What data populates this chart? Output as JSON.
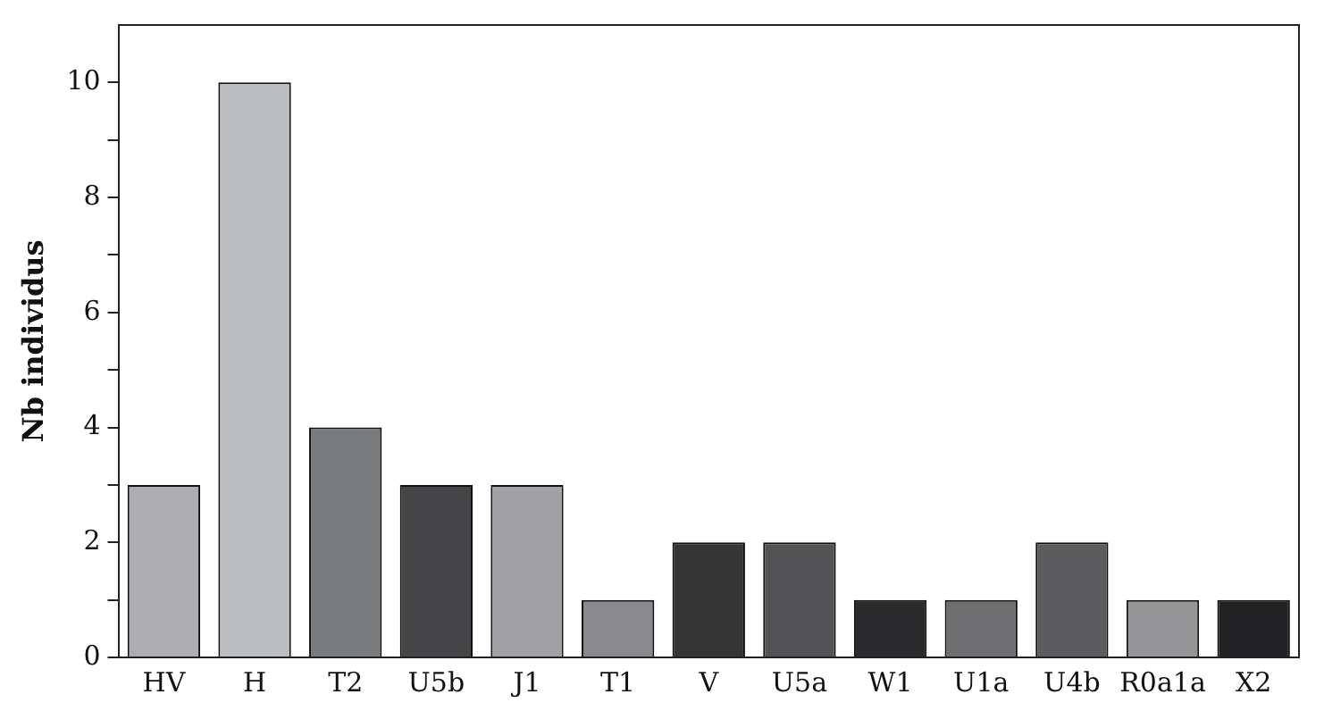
{
  "chart_data": {
    "type": "bar",
    "ylabel": "Nb individus",
    "categories": [
      "HV",
      "H",
      "T2",
      "U5b",
      "J1",
      "T1",
      "V",
      "U5a",
      "W1",
      "U1a",
      "U4b",
      "R0a1a",
      "X2"
    ],
    "values": [
      3,
      10,
      4,
      3,
      3,
      1,
      2,
      2,
      1,
      1,
      2,
      1,
      1
    ],
    "colors": [
      "#adadb1",
      "#bcbdc1",
      "#7a7b7d",
      "#454547",
      "#a2a2a6",
      "#8a8a8e",
      "#353536",
      "#535355",
      "#2b2a2c",
      "#6e6e71",
      "#5c5c5e",
      "#959598",
      "#222123"
    ],
    "ylim": [
      0,
      11
    ],
    "yticks": [
      0,
      {
        "value": 1,
        "label": null
      },
      2,
      {
        "value": 3,
        "label": null
      },
      4,
      {
        "value": 5,
        "label": null
      },
      6,
      {
        "value": 7,
        "label": null
      },
      8,
      {
        "value": 9,
        "label": null
      },
      10
    ],
    "grid": false
  }
}
